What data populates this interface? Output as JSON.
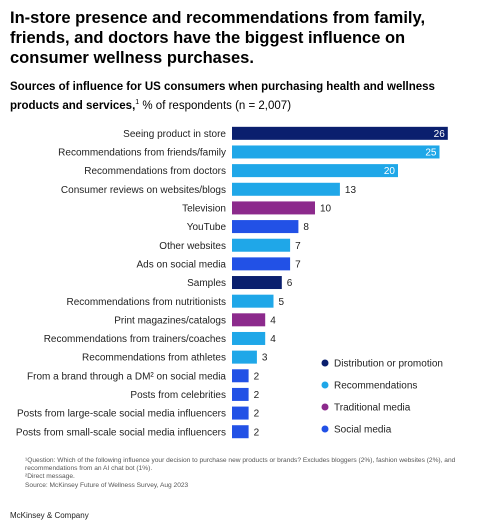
{
  "headline": "In-store presence and recommendations from family, friends, and doctors have the biggest influence on consumer wellness purchases.",
  "subtitle": {
    "bold": "Sources of influence for US consumers when purchasing health and wellness products and services,",
    "marker": "1",
    "rest": " % of respondents (n = 2,007)"
  },
  "colors": {
    "Distribution or promotion": "#0a1f6e",
    "Recommendations": "#1fa7e8",
    "Traditional media": "#8c2a8c",
    "Social media": "#2251e6"
  },
  "chart_data": {
    "type": "bar",
    "orientation": "horizontal",
    "categories": [
      "Seeing product in store",
      "Recommendations from friends/family",
      "Recommendations from doctors",
      "Consumer reviews on websites/blogs",
      "Television",
      "YouTube",
      "Other websites",
      "Ads on social media",
      "Samples",
      "Recommendations from nutritionists",
      "Print magazines/catalogs",
      "Recommendations from trainers/coaches",
      "Recommendations from athletes",
      "From a brand through a DM² on social media",
      "Posts from celebrities",
      "Posts from large-scale social media influencers",
      "Posts from small-scale social media influencers"
    ],
    "values": [
      26,
      25,
      20,
      13,
      10,
      8,
      7,
      7,
      6,
      5,
      4,
      4,
      3,
      2,
      2,
      2,
      2
    ],
    "groups": [
      "Distribution or promotion",
      "Recommendations",
      "Recommendations",
      "Recommendations",
      "Traditional media",
      "Social media",
      "Recommendations",
      "Social media",
      "Distribution or promotion",
      "Recommendations",
      "Traditional media",
      "Recommendations",
      "Recommendations",
      "Social media",
      "Social media",
      "Social media",
      "Social media"
    ],
    "legend": [
      "Distribution or promotion",
      "Recommendations",
      "Traditional media",
      "Social media"
    ],
    "legend_position": "right",
    "grid": false,
    "title": "",
    "xlabel": "",
    "ylabel": ""
  },
  "footnotes": [
    "¹Question: Which of the following influence your decision to purchase new products or brands? Excludes bloggers (2%), fashion websites (2%), and recommendations from an AI chat bot (1%).",
    "²Direct message.",
    "Source: McKinsey Future of Wellness Survey, Aug 2023"
  ],
  "brand": "McKinsey & Company"
}
